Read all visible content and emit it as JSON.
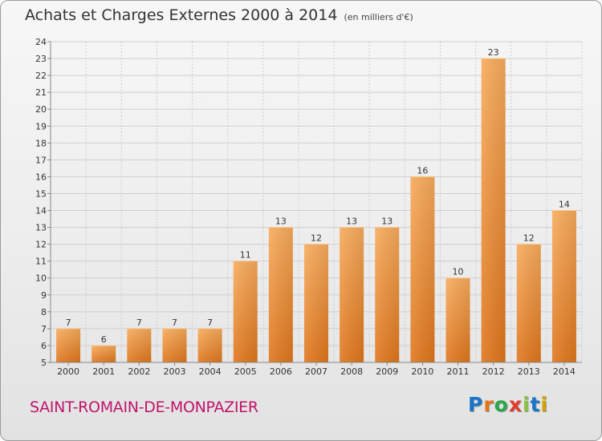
{
  "header": {
    "title": "Achats et Charges Externes 2000 à 2014",
    "unit": "(en milliers d'€)"
  },
  "footer": {
    "place": "SAINT-ROMAIN-DE-MONPAZIER",
    "logo": "Proxiti",
    "logo_colors": [
      "#1a75c9",
      "#e8731a",
      "#2aa84a",
      "#e23b2f",
      "#8bc43f",
      "#1a75c9",
      "#d6a100"
    ]
  },
  "colors": {
    "bar_light": "#f6a552",
    "bar_dark": "#e17a20",
    "grid": "#cfcfcf",
    "axis": "#888888",
    "label": "#333333",
    "place": "#c0146b"
  },
  "chart_data": {
    "type": "bar",
    "title": "Achats et Charges Externes 2000 à 2014",
    "subtitle": "(en milliers d'€)",
    "xlabel": "",
    "ylabel": "",
    "categories": [
      "2000",
      "2001",
      "2002",
      "2003",
      "2004",
      "2005",
      "2006",
      "2007",
      "2008",
      "2009",
      "2010",
      "2011",
      "2012",
      "2013",
      "2014"
    ],
    "values": [
      7,
      6,
      7,
      7,
      7,
      11,
      13,
      12,
      13,
      13,
      16,
      10,
      23,
      12,
      14
    ],
    "ylim": [
      5,
      24
    ],
    "yticks": [
      5,
      6,
      7,
      8,
      9,
      10,
      11,
      12,
      13,
      14,
      15,
      16,
      17,
      18,
      19,
      20,
      21,
      22,
      23,
      24
    ],
    "grid": true,
    "legend": "none"
  }
}
